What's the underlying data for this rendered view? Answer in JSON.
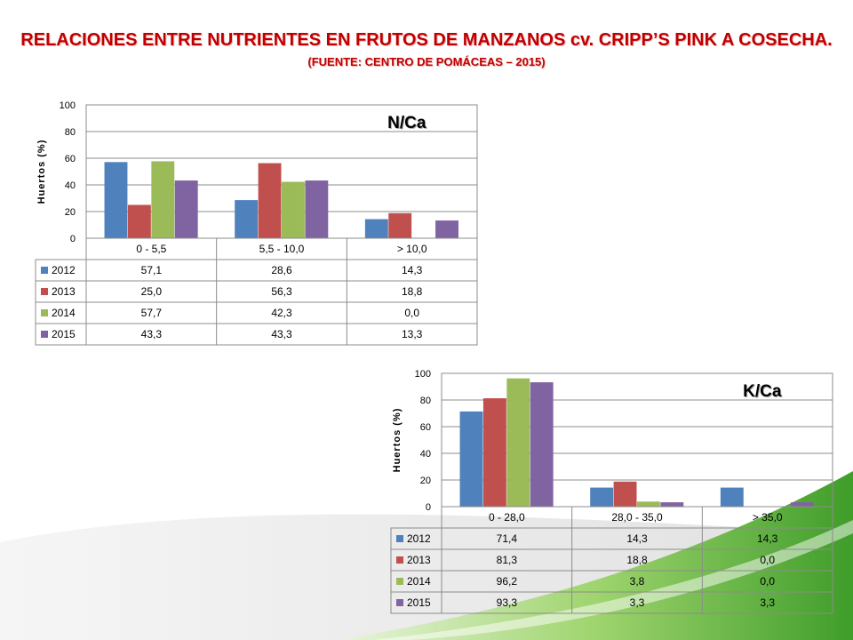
{
  "slide": {
    "title": "RELACIONES ENTRE NUTRIENTES EN FRUTOS DE MANZANOS cv. CRIPP’S PINK A COSECHA.",
    "subtitle": "(FUENTE: CENTRO DE POMÁCEAS – 2015)"
  },
  "colors": {
    "2012": "#4f81bd",
    "2013": "#c0504d",
    "2014": "#9bbb59",
    "2015": "#8064a2",
    "title": "#c00000",
    "accent_green": "#7bc143"
  },
  "chart_data": [
    {
      "type": "bar",
      "title": "N/Ca",
      "ylabel": "Huertos (%)",
      "xlabel": "",
      "ylim": [
        0,
        100
      ],
      "yticks": [
        0,
        20,
        40,
        60,
        80,
        100
      ],
      "grid": true,
      "legend": "data-table",
      "categories": [
        "0 - 5,5",
        "5,5 - 10,0",
        "> 10,0"
      ],
      "series": [
        {
          "name": "2012",
          "values": [
            57.1,
            28.6,
            14.3
          ],
          "labels": [
            "57,1",
            "28,6",
            "14,3"
          ]
        },
        {
          "name": "2013",
          "values": [
            25.0,
            56.3,
            18.8
          ],
          "labels": [
            "25,0",
            "56,3",
            "18,8"
          ]
        },
        {
          "name": "2014",
          "values": [
            57.7,
            42.3,
            0.0
          ],
          "labels": [
            "57,7",
            "42,3",
            "0,0"
          ]
        },
        {
          "name": "2015",
          "values": [
            43.3,
            43.3,
            13.3
          ],
          "labels": [
            "43,3",
            "43,3",
            "13,3"
          ]
        }
      ]
    },
    {
      "type": "bar",
      "title": "K/Ca",
      "ylabel": "Huertos (%)",
      "xlabel": "",
      "ylim": [
        0,
        100
      ],
      "yticks": [
        0,
        20,
        40,
        60,
        80,
        100
      ],
      "grid": true,
      "legend": "data-table",
      "categories": [
        "0 - 28,0",
        "28,0 - 35,0",
        "> 35,0"
      ],
      "series": [
        {
          "name": "2012",
          "values": [
            71.4,
            14.3,
            14.3
          ],
          "labels": [
            "71,4",
            "14,3",
            "14,3"
          ]
        },
        {
          "name": "2013",
          "values": [
            81.3,
            18.8,
            0.0
          ],
          "labels": [
            "81,3",
            "18,8",
            "0,0"
          ]
        },
        {
          "name": "2014",
          "values": [
            96.2,
            3.8,
            0.0
          ],
          "labels": [
            "96,2",
            "3,8",
            "0,0"
          ]
        },
        {
          "name": "2015",
          "values": [
            93.3,
            3.3,
            3.3
          ],
          "labels": [
            "93,3",
            "3,3",
            "3,3"
          ]
        }
      ]
    }
  ]
}
